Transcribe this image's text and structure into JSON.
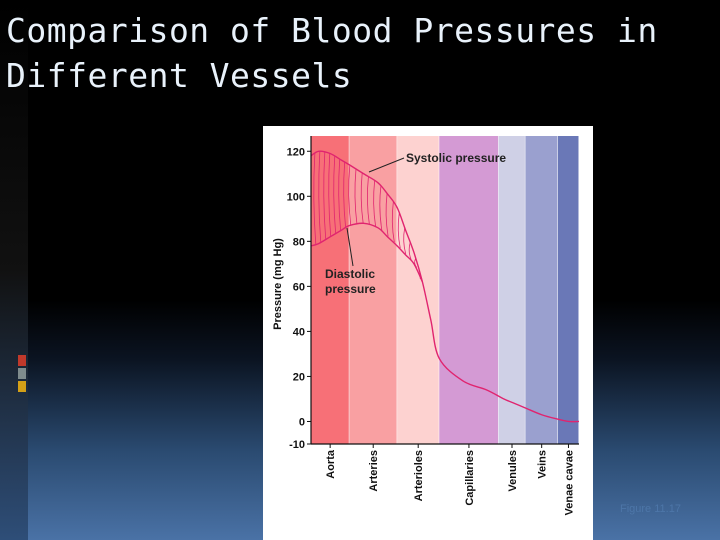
{
  "slide": {
    "title_line1": "Comparison of Blood Pressures in",
    "title_line2": "Different Vessels",
    "caption": "Figure 11.17",
    "accent_colors": [
      "#c0392b",
      "#7f8c8d",
      "#d4a017"
    ]
  },
  "chart_data": {
    "type": "line",
    "title": "",
    "ylabel": "Pressure (mg Hg)",
    "xlabel": "",
    "ylim": [
      -10,
      125
    ],
    "yticks": [
      -10,
      0,
      20,
      40,
      60,
      80,
      100,
      120
    ],
    "grid": false,
    "regions": [
      {
        "label": "Aorta",
        "color": "#f77077"
      },
      {
        "label": "Arteries",
        "color": "#f9a0a2"
      },
      {
        "label": "Arterioles",
        "color": "#fdd2d0"
      },
      {
        "label": "Capillaries",
        "color": "#d49ad4"
      },
      {
        "label": "Venules",
        "color": "#cfd0e6"
      },
      {
        "label": "Veins",
        "color": "#9aa0cf"
      },
      {
        "label": "Venae cavae",
        "color": "#6a78b7"
      }
    ],
    "series": [
      {
        "name": "Systolic pressure",
        "color": "#e0246f",
        "x": [
          0.0,
          0.2,
          0.5,
          0.8,
          1.0,
          1.3,
          1.6,
          1.8,
          2.0,
          2.2,
          2.4,
          2.6,
          2.8,
          3.0,
          3.4,
          3.8,
          4.2,
          4.6,
          5.0,
          5.5,
          6.0,
          6.5,
          7.0
        ],
        "values": [
          118,
          120,
          119,
          116,
          114,
          110,
          106,
          101,
          95,
          85,
          75,
          62,
          45,
          28,
          18,
          14,
          10,
          8,
          6,
          3,
          1,
          0,
          0
        ]
      },
      {
        "name": "Diastolic pressure",
        "color": "#e0246f",
        "x": [
          0.0,
          0.2,
          0.5,
          0.8,
          1.0,
          1.3,
          1.6,
          1.8,
          2.0,
          2.2,
          2.4,
          2.6
        ],
        "values": [
          78,
          79,
          82,
          85,
          87,
          88,
          86,
          82,
          78,
          74,
          70,
          62
        ]
      }
    ],
    "annotations": [
      {
        "text": "Systolic pressure"
      },
      {
        "text_line1": "Diastolic",
        "text_line2": "pressure"
      }
    ]
  }
}
